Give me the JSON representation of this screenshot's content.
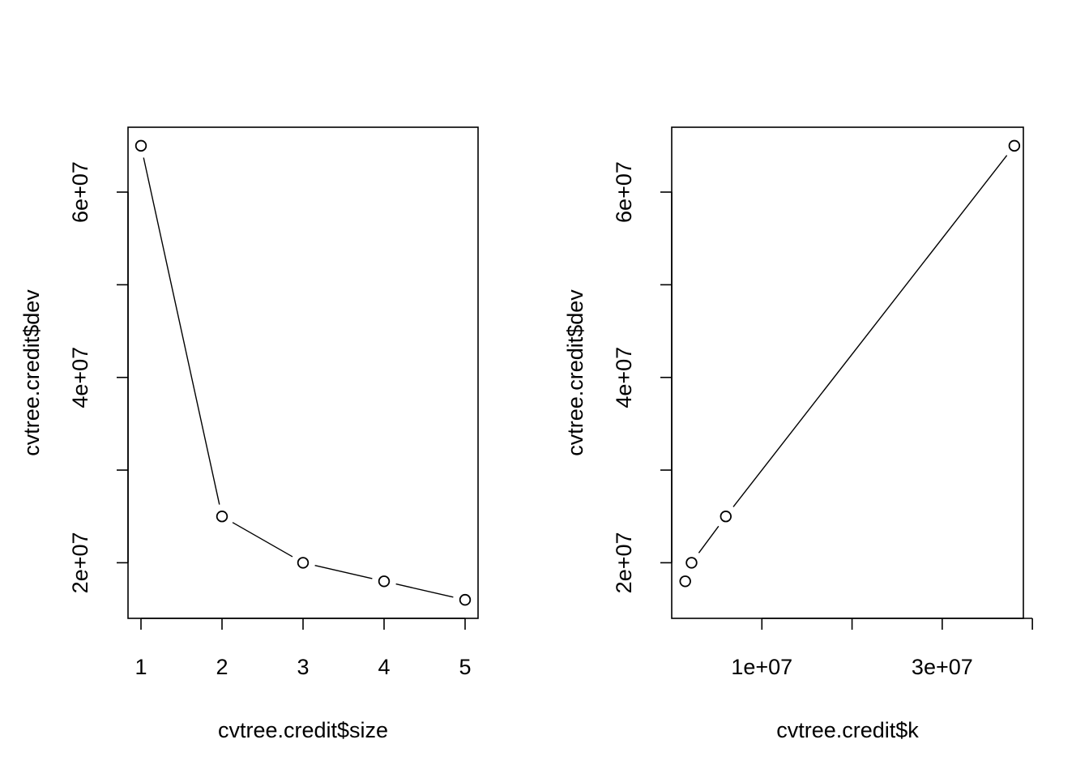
{
  "chart_data": [
    {
      "type": "line",
      "markers": "open-circle",
      "xlabel": "cvtree.credit$size",
      "ylabel": "cvtree.credit$dev",
      "x": [
        1,
        2,
        3,
        4,
        5
      ],
      "y": [
        65000000,
        25000000,
        20000000,
        18000000,
        16000000
      ],
      "xlim": [
        0.84,
        5.16
      ],
      "ylim": [
        14000000,
        67000000
      ],
      "xticks": [
        1,
        2,
        3,
        4,
        5
      ],
      "xtick_labels": [
        "1",
        "2",
        "3",
        "4",
        "5"
      ],
      "yticks": [
        20000000,
        30000000,
        40000000,
        50000000,
        60000000
      ],
      "ytick_labels": [
        "2e+07",
        "",
        "4e+07",
        "",
        "6e+07"
      ],
      "grid": false
    },
    {
      "type": "line",
      "markers": "open-circle",
      "xlabel": "cvtree.credit$k",
      "ylabel": "cvtree.credit$dev",
      "x": [
        1500000,
        2200000,
        6000000,
        38000000
      ],
      "y": [
        18000000,
        20000000,
        25000000,
        65000000
      ],
      "xlim": [
        0,
        39000000
      ],
      "ylim": [
        14000000,
        67000000
      ],
      "xticks": [
        10000000,
        20000000,
        30000000,
        40000000
      ],
      "xtick_labels": [
        "1e+07",
        "",
        "3e+07",
        ""
      ],
      "yticks": [
        20000000,
        30000000,
        40000000,
        50000000,
        60000000
      ],
      "ytick_labels": [
        "2e+07",
        "",
        "4e+07",
        "",
        "6e+07"
      ],
      "grid": false
    }
  ]
}
